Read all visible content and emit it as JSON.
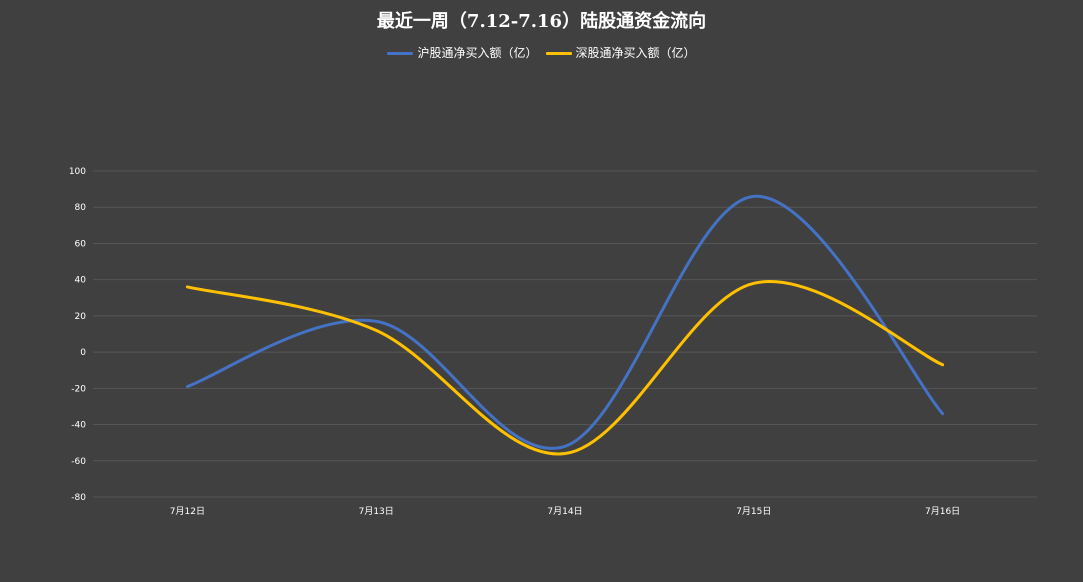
{
  "chart_data": {
    "type": "line",
    "title": "最近一周（7.12-7.16）陆股通资金流向",
    "xlabel": "",
    "ylabel": "",
    "categories": [
      "7月12日",
      "7月13日",
      "7月14日",
      "7月15日",
      "7月16日"
    ],
    "series": [
      {
        "name": "沪股通净买入额（亿）",
        "color": "#4472C4",
        "values": [
          -19,
          17,
          -52,
          86,
          -34
        ]
      },
      {
        "name": "深股通净买入额（亿）",
        "color": "#FFC000",
        "values": [
          36,
          12,
          -56,
          38,
          -7
        ]
      }
    ],
    "ylim": [
      -80,
      100
    ],
    "yticks": [
      -80,
      -60,
      -40,
      -20,
      0,
      20,
      40,
      60,
      80,
      100
    ],
    "smooth": true,
    "grid": true,
    "legend_position": "top-center",
    "background_color": "#404040",
    "grid_color": "#555555"
  }
}
